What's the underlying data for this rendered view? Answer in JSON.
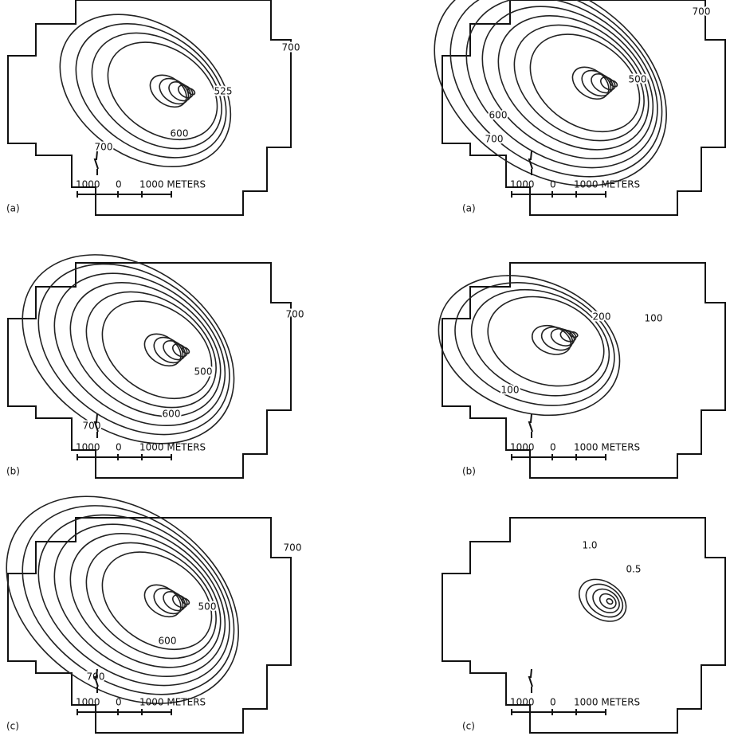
{
  "panels": [
    {
      "label": "(a)",
      "contour_labels": [
        "700",
        "525",
        "600",
        "700"
      ],
      "scale": {
        "left": "1000",
        "mid": "0",
        "right": "1000 METERS"
      }
    },
    {
      "label": "(a)",
      "contour_labels": [
        "700",
        "500",
        "600",
        "700"
      ],
      "scale": {
        "left": "1000",
        "mid": "0",
        "right": "1000 METERS"
      }
    },
    {
      "label": "(b)",
      "contour_labels": [
        "700",
        "500",
        "600",
        "700"
      ],
      "scale": {
        "left": "1000",
        "mid": "0",
        "right": "1000 METERS"
      }
    },
    {
      "label": "(b)",
      "contour_labels": [
        "200",
        "100",
        "100"
      ],
      "scale": {
        "left": "1000",
        "mid": "0",
        "right": "1000 METERS"
      }
    },
    {
      "label": "(c)",
      "contour_labels": [
        "700",
        "500",
        "600",
        "700"
      ],
      "scale": {
        "left": "1000",
        "mid": "0",
        "right": "1000 METERS"
      }
    },
    {
      "label": "(c)",
      "contour_labels": [
        "1.0",
        "0.5"
      ],
      "scale": {
        "left": "1000",
        "mid": "0",
        "right": "1000 METERS"
      }
    }
  ]
}
